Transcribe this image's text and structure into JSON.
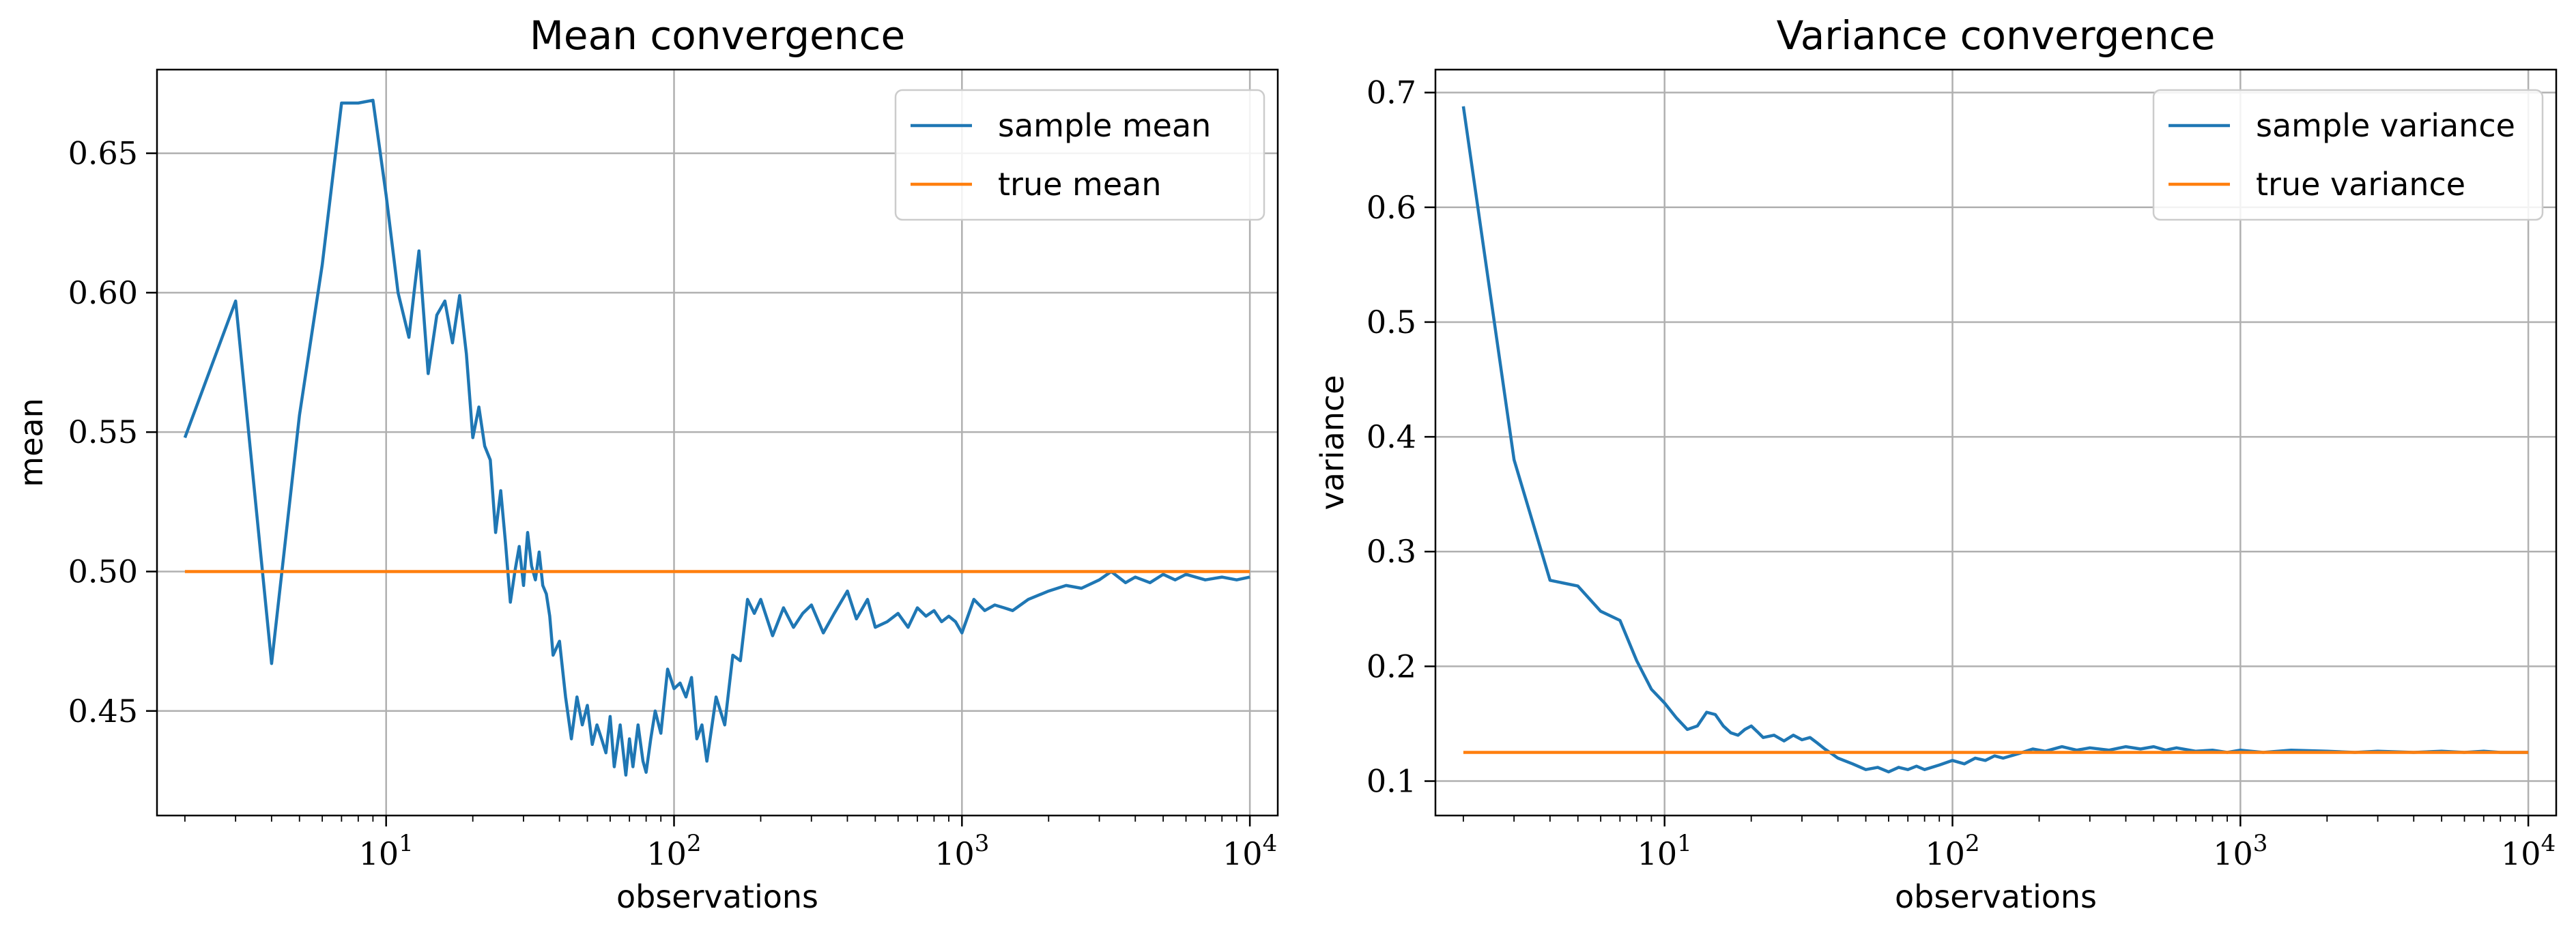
{
  "chart_data": [
    {
      "type": "line",
      "title": "Mean convergence",
      "xlabel": "observations",
      "ylabel": "mean",
      "xscale": "log",
      "xlim": [
        1.6,
        12500
      ],
      "ylim": [
        0.4125,
        0.68
      ],
      "yticks": [
        0.45,
        0.5,
        0.55,
        0.6,
        0.65
      ],
      "ytick_labels": [
        "0.45",
        "0.50",
        "0.55",
        "0.60",
        "0.65"
      ],
      "xticks": [
        10,
        100,
        1000,
        10000
      ],
      "xtick_labels": [
        {
          "base": "10",
          "exp": "1"
        },
        {
          "base": "10",
          "exp": "2"
        },
        {
          "base": "10",
          "exp": "3"
        },
        {
          "base": "10",
          "exp": "4"
        }
      ],
      "grid": true,
      "legend": "top-right",
      "series": [
        {
          "name": "sample mean",
          "color": "#1f77b4",
          "x": [
            2,
            3,
            4,
            5,
            6,
            7,
            8,
            9,
            10,
            11,
            12,
            12.5,
            13,
            14,
            15,
            16,
            17,
            18,
            19,
            20,
            21,
            22,
            23,
            24,
            25,
            26,
            27,
            28,
            29,
            30,
            31,
            32,
            33,
            34,
            35,
            36,
            37,
            38,
            40,
            42,
            44,
            46,
            48,
            50,
            52,
            54,
            56,
            58,
            60,
            62,
            65,
            68,
            70,
            72,
            75,
            78,
            80,
            83,
            86,
            90,
            95,
            100,
            105,
            110,
            115,
            120,
            125,
            130,
            140,
            150,
            160,
            170,
            180,
            190,
            200,
            220,
            240,
            260,
            280,
            300,
            330,
            360,
            400,
            430,
            470,
            500,
            550,
            600,
            650,
            700,
            750,
            800,
            850,
            900,
            950,
            1000,
            1100,
            1200,
            1300,
            1400,
            1500,
            1700,
            2000,
            2300,
            2600,
            3000,
            3300,
            3700,
            4000,
            4500,
            5000,
            5500,
            6000,
            7000,
            8000,
            9000,
            10000
          ],
          "y": [
            0.548,
            0.597,
            0.467,
            0.556,
            0.61,
            0.668,
            0.668,
            0.669,
            0.635,
            0.6,
            0.584,
            0.6,
            0.615,
            0.571,
            0.592,
            0.597,
            0.582,
            0.599,
            0.578,
            0.548,
            0.559,
            0.545,
            0.54,
            0.514,
            0.529,
            0.51,
            0.489,
            0.5,
            0.509,
            0.495,
            0.514,
            0.502,
            0.497,
            0.507,
            0.495,
            0.492,
            0.484,
            0.47,
            0.475,
            0.455,
            0.44,
            0.455,
            0.445,
            0.452,
            0.438,
            0.445,
            0.44,
            0.435,
            0.448,
            0.43,
            0.445,
            0.427,
            0.44,
            0.43,
            0.445,
            0.432,
            0.428,
            0.44,
            0.45,
            0.442,
            0.465,
            0.458,
            0.46,
            0.455,
            0.462,
            0.44,
            0.445,
            0.432,
            0.455,
            0.445,
            0.47,
            0.468,
            0.49,
            0.485,
            0.49,
            0.477,
            0.487,
            0.48,
            0.485,
            0.488,
            0.478,
            0.485,
            0.493,
            0.483,
            0.49,
            0.48,
            0.482,
            0.485,
            0.48,
            0.487,
            0.484,
            0.486,
            0.482,
            0.484,
            0.482,
            0.478,
            0.49,
            0.486,
            0.488,
            0.487,
            0.486,
            0.49,
            0.493,
            0.495,
            0.494,
            0.497,
            0.5,
            0.496,
            0.498,
            0.496,
            0.499,
            0.497,
            0.499,
            0.497,
            0.498,
            0.497,
            0.498
          ]
        },
        {
          "name": "true mean",
          "color": "#ff7f0e",
          "x": [
            2,
            10000
          ],
          "y": [
            0.5,
            0.5
          ]
        }
      ]
    },
    {
      "type": "line",
      "title": "Variance convergence",
      "xlabel": "observations",
      "ylabel": "variance",
      "xscale": "log",
      "xlim": [
        1.6,
        12500
      ],
      "ylim": [
        0.07,
        0.72
      ],
      "yticks": [
        0.1,
        0.2,
        0.3,
        0.4,
        0.5,
        0.6,
        0.7
      ],
      "ytick_labels": [
        "0.1",
        "0.2",
        "0.3",
        "0.4",
        "0.5",
        "0.6",
        "0.7"
      ],
      "xticks": [
        10,
        100,
        1000,
        10000
      ],
      "xtick_labels": [
        {
          "base": "10",
          "exp": "1"
        },
        {
          "base": "10",
          "exp": "2"
        },
        {
          "base": "10",
          "exp": "3"
        },
        {
          "base": "10",
          "exp": "4"
        }
      ],
      "grid": true,
      "legend": "top-right",
      "series": [
        {
          "name": "sample variance",
          "color": "#1f77b4",
          "x": [
            2,
            3,
            4,
            5,
            6,
            7,
            8,
            9,
            10,
            11,
            12,
            13,
            14,
            15,
            16,
            17,
            18,
            19,
            20,
            21,
            22,
            24,
            26,
            28,
            30,
            32,
            34,
            36,
            38,
            40,
            45,
            50,
            55,
            60,
            65,
            70,
            75,
            80,
            90,
            100,
            110,
            120,
            130,
            140,
            150,
            170,
            190,
            210,
            240,
            270,
            300,
            350,
            400,
            450,
            500,
            550,
            600,
            700,
            800,
            900,
            1000,
            1200,
            1500,
            2000,
            2500,
            3000,
            4000,
            5000,
            6000,
            7000,
            8000,
            9000,
            10000
          ],
          "y": [
            0.688,
            0.38,
            0.275,
            0.27,
            0.248,
            0.24,
            0.205,
            0.18,
            0.168,
            0.155,
            0.145,
            0.148,
            0.16,
            0.158,
            0.148,
            0.142,
            0.14,
            0.145,
            0.148,
            0.143,
            0.138,
            0.14,
            0.135,
            0.14,
            0.136,
            0.138,
            0.133,
            0.128,
            0.124,
            0.12,
            0.115,
            0.11,
            0.112,
            0.108,
            0.112,
            0.11,
            0.113,
            0.11,
            0.114,
            0.118,
            0.115,
            0.12,
            0.118,
            0.122,
            0.12,
            0.124,
            0.128,
            0.126,
            0.13,
            0.127,
            0.129,
            0.127,
            0.13,
            0.128,
            0.13,
            0.127,
            0.129,
            0.126,
            0.127,
            0.125,
            0.127,
            0.125,
            0.127,
            0.126,
            0.125,
            0.126,
            0.125,
            0.126,
            0.125,
            0.126,
            0.125,
            0.125,
            0.125
          ]
        },
        {
          "name": "true variance",
          "color": "#ff7f0e",
          "x": [
            2,
            10000
          ],
          "y": [
            0.125,
            0.125
          ]
        }
      ]
    }
  ]
}
